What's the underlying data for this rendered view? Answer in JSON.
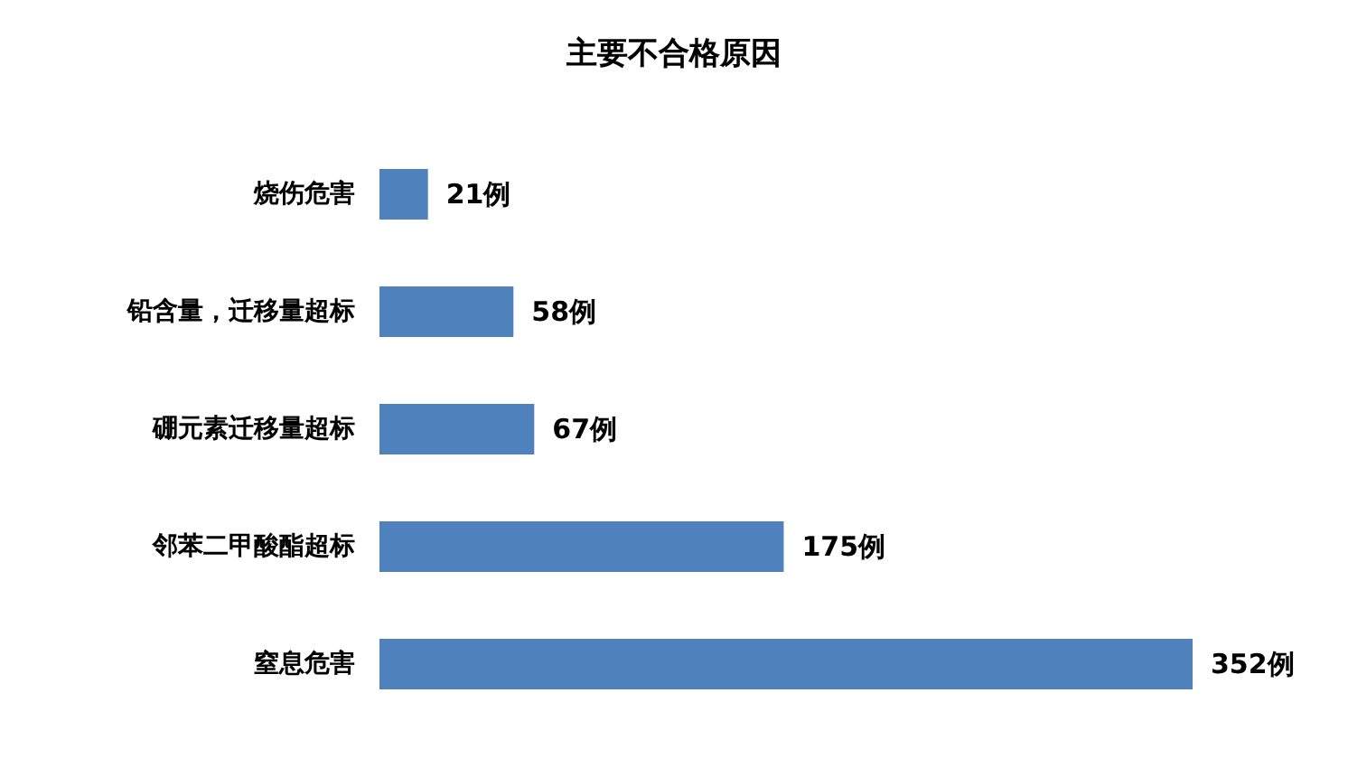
{
  "chart_data": {
    "type": "bar",
    "orientation": "horizontal",
    "title": "主要不合格原因",
    "categories": [
      "烧伤危害",
      "铅含量，迁移量超标",
      "硼元素迁移量超标",
      "邻苯二甲酸酯超标",
      "窒息危害"
    ],
    "values": [
      21,
      58,
      67,
      175,
      352
    ],
    "color": "#4f81bd",
    "value_labels": [
      "21例",
      "58例",
      "67例",
      "175例",
      "352例"
    ],
    "tick_labels": "y",
    "grid": false
  }
}
